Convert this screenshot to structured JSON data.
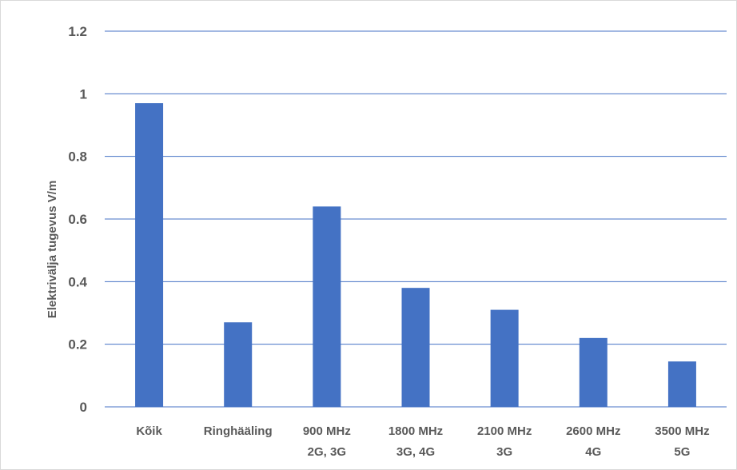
{
  "chart_data": {
    "type": "bar",
    "title": "",
    "xlabel": "",
    "ylabel": "Elektrivälja tugevus V/m",
    "categories": [
      [
        "Kõik"
      ],
      [
        "Ringhääling"
      ],
      [
        "900 MHz",
        "2G, 3G"
      ],
      [
        "1800 MHz",
        "3G, 4G"
      ],
      [
        "2100 MHz",
        "3G"
      ],
      [
        "2600 MHz",
        "4G"
      ],
      [
        "3500 MHz",
        "5G"
      ]
    ],
    "values": [
      0.97,
      0.27,
      0.64,
      0.38,
      0.31,
      0.22,
      0.145
    ],
    "ylim": [
      0,
      1.2
    ],
    "yticks": [
      "0",
      "0.2",
      "0.4",
      "0.6",
      "0.8",
      "1",
      "1.2"
    ],
    "grid": true,
    "legend": "none",
    "colors": {
      "bar": "#4472c4",
      "grid": "#4472c4",
      "text": "#595959"
    }
  }
}
